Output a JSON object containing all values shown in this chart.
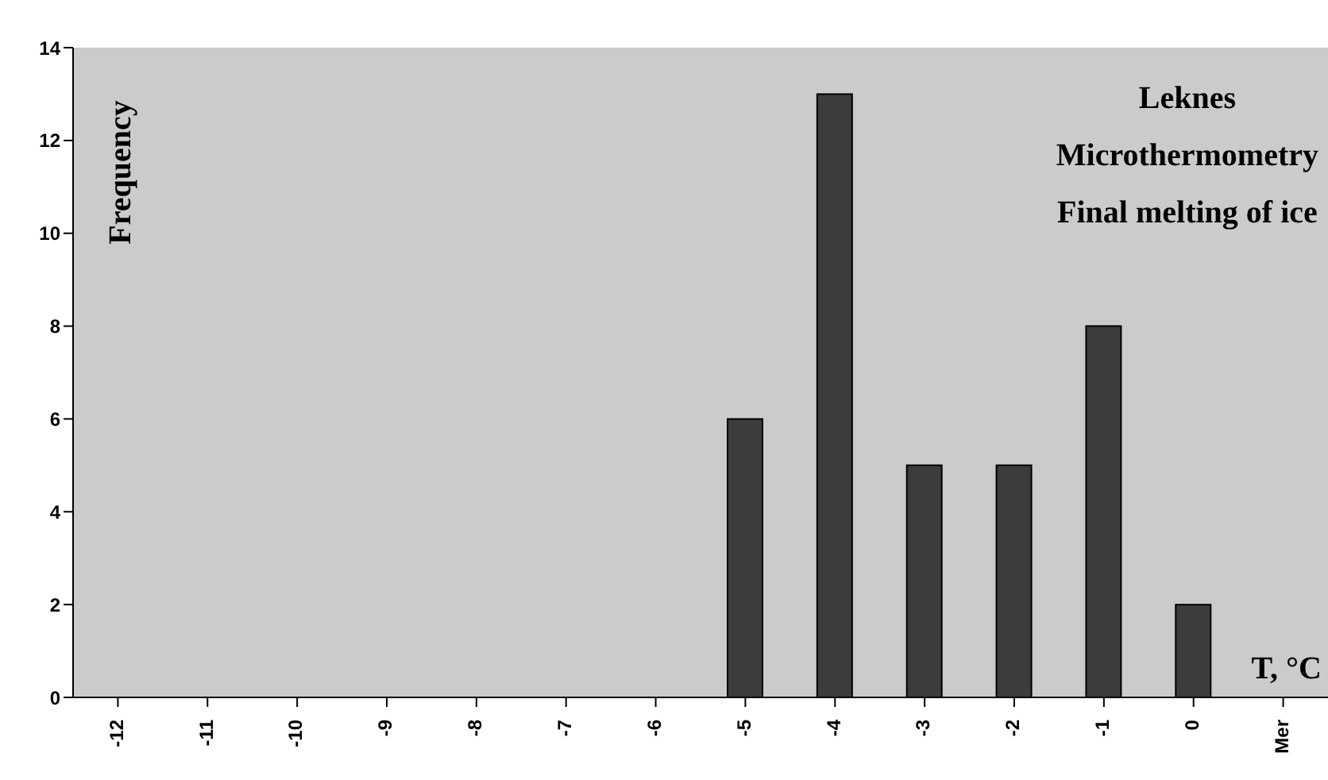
{
  "chart_data": {
    "type": "bar",
    "title": "Leknes",
    "subtitle": "Microthermometry",
    "annotations": [
      "Final melting of ice"
    ],
    "ylabel": "Frequency",
    "xlabel": "T, °C",
    "categories": [
      "-12",
      "-11",
      "-10",
      "-9",
      "-8",
      "-7",
      "-6",
      "-5",
      "-4",
      "-3",
      "-2",
      "-1",
      "0",
      "Mer"
    ],
    "values": [
      0,
      0,
      0,
      0,
      0,
      0,
      0,
      6,
      13,
      5,
      5,
      8,
      2,
      0
    ],
    "color": "#3c3c3c",
    "ylim": [
      0,
      14
    ],
    "yticks": [
      0,
      2,
      4,
      6,
      8,
      10,
      12,
      14
    ],
    "grid": false
  }
}
